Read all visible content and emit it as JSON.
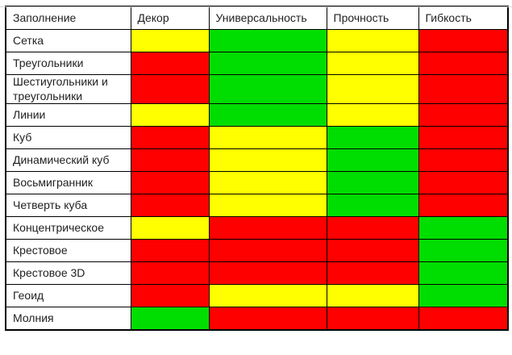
{
  "chart_data": {
    "type": "table",
    "columns": [
      "Заполнение",
      "Декор",
      "Универсальность",
      "Прочность",
      "Гибкость"
    ],
    "rows": [
      {
        "label": "Сетка",
        "ratings": [
          "yellow",
          "green",
          "yellow",
          "red"
        ]
      },
      {
        "label": "Треугольники",
        "ratings": [
          "red",
          "green",
          "yellow",
          "red"
        ]
      },
      {
        "label": "Шестиугольники и треугольники",
        "ratings": [
          "red",
          "green",
          "yellow",
          "red"
        ]
      },
      {
        "label": "Линии",
        "ratings": [
          "yellow",
          "green",
          "yellow",
          "red"
        ]
      },
      {
        "label": "Куб",
        "ratings": [
          "red",
          "yellow",
          "green",
          "red"
        ]
      },
      {
        "label": "Динамический куб",
        "ratings": [
          "red",
          "yellow",
          "green",
          "red"
        ]
      },
      {
        "label": "Восьмигранник",
        "ratings": [
          "red",
          "yellow",
          "green",
          "red"
        ]
      },
      {
        "label": "Четверть куба",
        "ratings": [
          "red",
          "yellow",
          "green",
          "red"
        ]
      },
      {
        "label": "Концентрическое",
        "ratings": [
          "yellow",
          "red",
          "red",
          "green"
        ]
      },
      {
        "label": "Крестовое",
        "ratings": [
          "red",
          "red",
          "red",
          "green"
        ]
      },
      {
        "label": "Крестовое 3D",
        "ratings": [
          "red",
          "red",
          "red",
          "green"
        ]
      },
      {
        "label": "Геоид",
        "ratings": [
          "red",
          "yellow",
          "yellow",
          "green"
        ]
      },
      {
        "label": "Молния",
        "ratings": [
          "green",
          "red",
          "red",
          "red"
        ]
      }
    ],
    "colors": {
      "red": "#ff0000",
      "yellow": "#ffff00",
      "green": "#00dd00"
    },
    "grid": true,
    "title": ""
  }
}
